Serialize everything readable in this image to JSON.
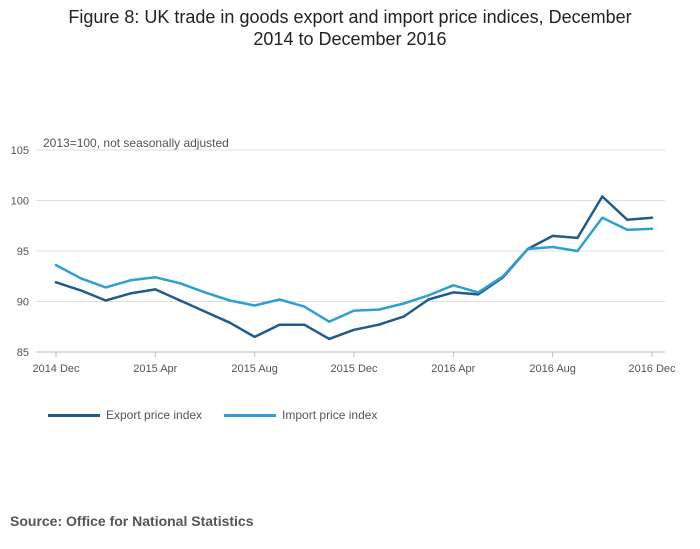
{
  "title_lines": [
    "Figure 8: UK trade in goods export and import price indices, December",
    "2014 to December 2016"
  ],
  "source": "Source: Office for National Statistics",
  "colors": {
    "export": "#1f5c8b",
    "import": "#2ea0d1",
    "grid": "#dddddd"
  },
  "chart_data": {
    "type": "line",
    "title": "Figure 8: UK trade in goods export and import price indices, December 2014 to December 2016",
    "note": "2013=100, not seasonally adjusted",
    "x": [
      "2014 Dec",
      "2015 Jan",
      "2015 Feb",
      "2015 Mar",
      "2015 Apr",
      "2015 May",
      "2015 Jun",
      "2015 Jul",
      "2015 Aug",
      "2015 Sep",
      "2015 Oct",
      "2015 Nov",
      "2015 Dec",
      "2016 Jan",
      "2016 Feb",
      "2016 Mar",
      "2016 Apr",
      "2016 May",
      "2016 Jun",
      "2016 Jul",
      "2016 Aug",
      "2016 Sep",
      "2016 Oct",
      "2016 Nov",
      "2016 Dec"
    ],
    "x_tick_labels": [
      "2014 Dec",
      "2015 Apr",
      "2015 Aug",
      "2015 Dec",
      "2016 Apr",
      "2016 Aug",
      "2016 Dec"
    ],
    "y_ticks": [
      85,
      90,
      95,
      100,
      105
    ],
    "ylim": [
      85,
      105
    ],
    "grid": true,
    "legend_position": "bottom-left",
    "series": [
      {
        "name": "Export price index",
        "color": "#1f5c8b",
        "values": [
          91.9,
          91.1,
          90.1,
          90.8,
          91.2,
          90.1,
          89.0,
          87.9,
          86.5,
          87.7,
          87.7,
          86.3,
          87.2,
          87.7,
          88.5,
          90.2,
          90.9,
          90.7,
          92.4,
          95.2,
          96.5,
          96.3,
          100.4,
          98.1,
          98.3
        ]
      },
      {
        "name": "Import price index",
        "color": "#2ea0d1",
        "values": [
          93.6,
          92.3,
          91.4,
          92.1,
          92.4,
          91.8,
          90.9,
          90.1,
          89.6,
          90.2,
          89.5,
          88.0,
          89.1,
          89.2,
          89.8,
          90.6,
          91.6,
          90.9,
          92.5,
          95.2,
          95.4,
          95.0,
          98.3,
          97.1,
          97.2
        ]
      }
    ]
  }
}
